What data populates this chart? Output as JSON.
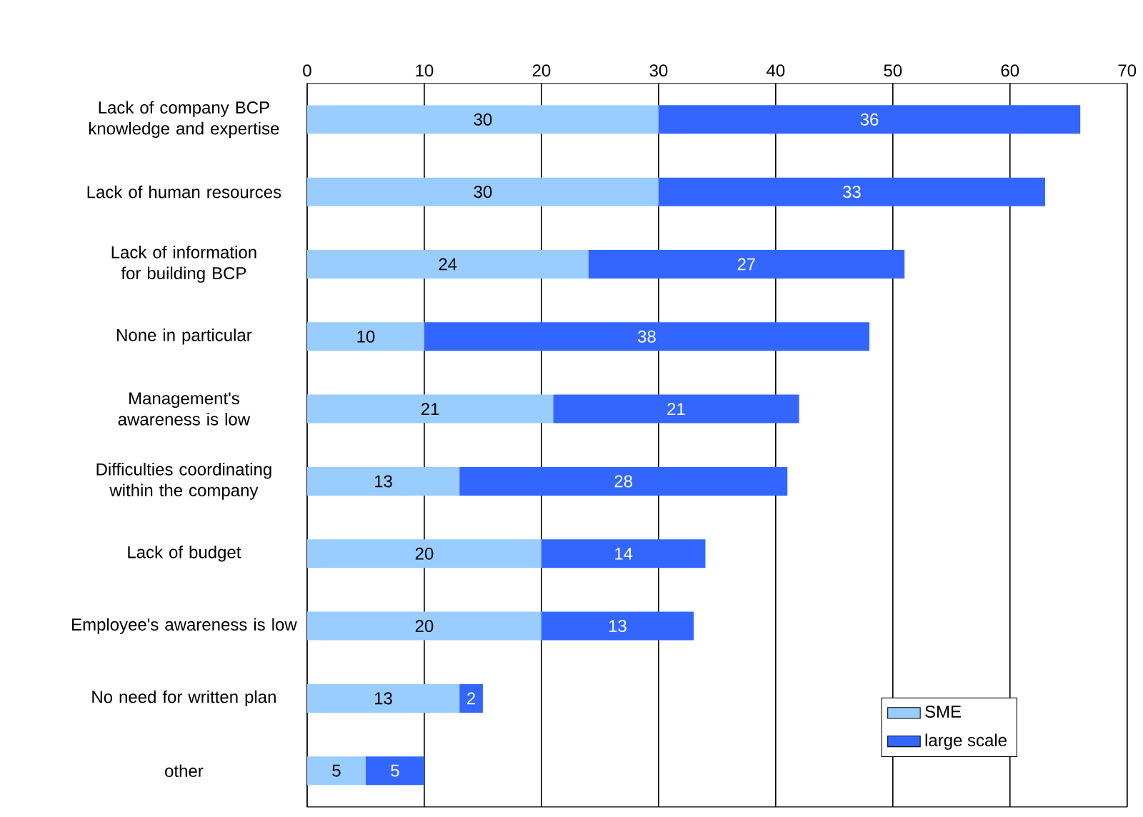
{
  "chart_data": {
    "type": "bar",
    "orientation": "horizontal",
    "stacked": true,
    "data_labels": true,
    "grid": "x",
    "legend": "bottom right",
    "categories": [
      "Lack of company BCP knowledge and expertise",
      "Lack of human resources",
      "Lack of information for building BCP",
      "None in particular",
      "Management's awareness is low",
      "Difficulties coordinating within the company",
      "Lack of budget",
      "Employee's awareness is low",
      "No need for written plan",
      "other"
    ],
    "series": [
      {
        "name": "SME",
        "color": "#99ccff",
        "values": [
          30,
          30,
          24,
          10,
          21,
          13,
          20,
          20,
          13,
          5
        ]
      },
      {
        "name": "large scale",
        "color": "#3366ff",
        "values": [
          36,
          33,
          27,
          38,
          21,
          28,
          14,
          13,
          2,
          5
        ]
      }
    ],
    "xlim": [
      0,
      70
    ],
    "xticks": [
      0,
      10,
      20,
      30,
      40,
      50,
      60,
      70
    ]
  }
}
